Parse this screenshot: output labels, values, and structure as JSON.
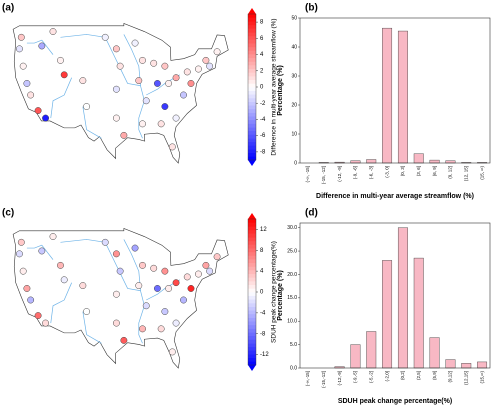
{
  "chart_data": [
    {
      "type": "map",
      "panel_label": "(a)",
      "colorbar_label": "Difference in multi-year average streamflow (%)",
      "x": [
        -122.5,
        -123,
        -122,
        -121,
        -120,
        -118,
        -116,
        -117,
        -114,
        -112,
        -111,
        -106,
        -105,
        -100,
        -97,
        -96,
        -97,
        -97,
        -95,
        -92,
        -90,
        -91,
        -89,
        -90,
        -87,
        -86,
        -84,
        -83,
        -84,
        -85,
        -81,
        -79,
        -78,
        -75,
        -73,
        -72,
        -70,
        -82,
        -81,
        -77
      ],
      "y": [
        47,
        45,
        42,
        39,
        37,
        34.3,
        33,
        45.5,
        48,
        43,
        40.5,
        39.5,
        35,
        47,
        45,
        42,
        38,
        33,
        30,
        46,
        43,
        39.5,
        36,
        32,
        42.5,
        39,
        42,
        39,
        35,
        32,
        40,
        37,
        41,
        41.5,
        43,
        42,
        44.5,
        28,
        33,
        39
      ],
      "values": [
        2,
        -1,
        0.5,
        -2,
        1,
        6,
        -8,
        -3,
        1,
        0.5,
        7,
        1,
        0,
        -0.5,
        2,
        1,
        -1,
        0.5,
        3,
        -0.5,
        1,
        2,
        -1,
        0.5,
        1,
        -6,
        2,
        0.5,
        -7,
        1,
        3,
        -2,
        1,
        0.5,
        2,
        -1,
        0.5,
        1,
        -0.5,
        4
      ],
      "clim": [
        -9,
        9
      ],
      "cticks": [
        8,
        6,
        4,
        2,
        0,
        -2,
        -4,
        -6,
        -8
      ],
      "colormap": [
        "#0000ff",
        "#ffffff",
        "#ff0000"
      ]
    },
    {
      "type": "bar",
      "panel_label": "(b)",
      "categories": [
        "(-∞, -15]",
        "(-15, -12]",
        "(-12, -9]",
        "(-9, -6]",
        "(-6, -3]",
        "(-3, 0]",
        "(0, 3]",
        "(3, 6]",
        "(6, 9]",
        "(9, 12]",
        "(12, 15]",
        "(15, ∞)"
      ],
      "values": [
        0,
        0.2,
        0.3,
        0.8,
        1.2,
        46.5,
        45.5,
        3.2,
        1,
        0.8,
        0.2,
        0.2
      ],
      "color": "#f8b8c4",
      "ylim": [
        0,
        50
      ],
      "yticks": [
        0,
        10,
        20,
        30,
        40,
        50
      ],
      "xlabel": "Difference in multi-year average streamflow (%)",
      "ylabel": "Percentage (%)"
    },
    {
      "type": "map",
      "panel_label": "(c)",
      "colorbar_label": "SDUH peak change percentage(%)",
      "x": [
        -122.5,
        -123,
        -122,
        -121,
        -120,
        -118,
        -116,
        -117,
        -114,
        -112,
        -111,
        -106,
        -105,
        -100,
        -97,
        -96,
        -97,
        -97,
        -95,
        -92,
        -90,
        -91,
        -89,
        -90,
        -87,
        -86,
        -84,
        -83,
        -84,
        -85,
        -81,
        -79,
        -78,
        -75,
        -73,
        -72,
        -70,
        -82,
        -81,
        -77
      ],
      "y": [
        47,
        45,
        42,
        39,
        37,
        34.3,
        33,
        45.5,
        48,
        43,
        40.5,
        39.5,
        35,
        47,
        45,
        42,
        38,
        33,
        30,
        46,
        43,
        39.5,
        36,
        32,
        42.5,
        39,
        42,
        39,
        35,
        32,
        40,
        37,
        41,
        41.5,
        43,
        42,
        44.5,
        28,
        33,
        39
      ],
      "values": [
        3,
        -2,
        1,
        5,
        -4,
        8,
        2,
        -3,
        1,
        4,
        -1,
        2,
        0,
        -2,
        6,
        -3,
        1,
        2,
        9,
        -5,
        3,
        1,
        -2,
        4,
        2,
        -8,
        6,
        1,
        -3,
        2,
        10,
        -4,
        2,
        1,
        5,
        -2,
        3,
        1,
        -1,
        12
      ],
      "clim": [
        -14,
        14
      ],
      "cticks": [
        12,
        8,
        4,
        0,
        -4,
        -8,
        -12
      ],
      "colormap": [
        "#0000ff",
        "#ffffff",
        "#ff0000"
      ]
    },
    {
      "type": "bar",
      "panel_label": "(d)",
      "categories": [
        "(-∞,-15]",
        "(-15,-12]",
        "(-12,-9]",
        "(-9,-5]",
        "(-5,-2]",
        "(-2,0]",
        "(0,2]",
        "(2,5]",
        "(5,9]",
        "(9,12]",
        "(12,15]",
        "(15,∞)"
      ],
      "values": [
        0,
        0,
        0.3,
        5,
        7.8,
        23,
        30,
        23.5,
        6.5,
        1.8,
        1,
        1.3
      ],
      "color": "#f8b8c4",
      "ylim": [
        0,
        31
      ],
      "yticks": [
        {
          "value": 0,
          "label": "0.0"
        },
        {
          "value": 5,
          "label": "5.0"
        },
        {
          "value": 10,
          "label": "10.0"
        },
        {
          "value": 15,
          "label": "15.0"
        },
        {
          "value": 20,
          "label": "20.0"
        },
        {
          "value": 25,
          "label": "25.0"
        },
        {
          "value": 30,
          "label": "30.0"
        }
      ],
      "xlabel": "SDUH peak change percentage(%)",
      "ylabel": "Percentage (%)"
    }
  ]
}
